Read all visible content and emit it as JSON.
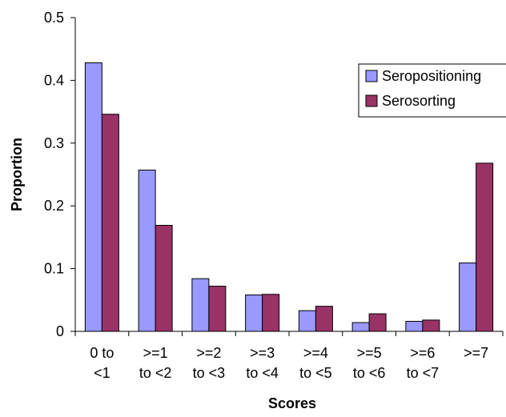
{
  "chart_data": {
    "type": "bar",
    "title": "",
    "xlabel": "Scores",
    "ylabel": "Proportion",
    "ylim": [
      0,
      0.5
    ],
    "yticks": [
      "0",
      "0.1",
      "0.2",
      "0.3",
      "0.4",
      "0.5"
    ],
    "categories": [
      [
        "0 to",
        "<1"
      ],
      [
        ">=1",
        "to <2"
      ],
      [
        ">=2",
        "to <3"
      ],
      [
        ">=3",
        "to <4"
      ],
      [
        ">=4",
        "to <5"
      ],
      [
        ">=5",
        "to <6"
      ],
      [
        ">=6",
        "to <7"
      ],
      [
        ">=7"
      ]
    ],
    "series": [
      {
        "name": "Seropositioning",
        "color": "#9999ff",
        "values": [
          0.428,
          0.257,
          0.084,
          0.058,
          0.033,
          0.014,
          0.016,
          0.109
        ]
      },
      {
        "name": "Serosorting",
        "color": "#993366",
        "values": [
          0.346,
          0.169,
          0.072,
          0.059,
          0.04,
          0.028,
          0.018,
          0.268
        ]
      }
    ],
    "grid": false,
    "legend_position": "top-right"
  }
}
